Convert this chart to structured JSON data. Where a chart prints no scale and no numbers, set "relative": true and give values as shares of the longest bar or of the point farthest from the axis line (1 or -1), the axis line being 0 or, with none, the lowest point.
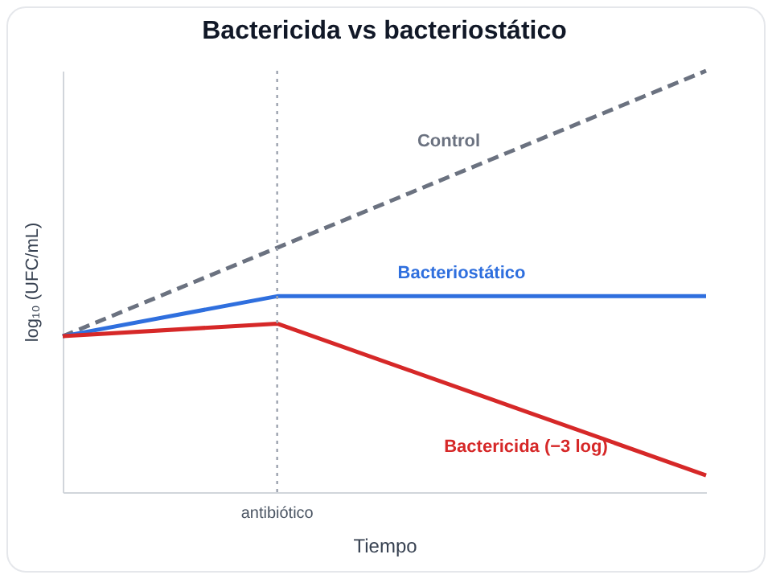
{
  "chart_data": {
    "type": "line",
    "title": "Bactericida vs bacteriostático",
    "xlabel": "Tiempo",
    "ylabel": "log₁₀ (UFC/mL)",
    "relative": true,
    "grid": false,
    "legend": false,
    "categories": [
      null,
      null,
      null,
      null
    ],
    "series": [
      {
        "name": "Control",
        "color": "#6b7280",
        "line_style": "dashed",
        "values": [
          0.37,
          0.58,
          0.79,
          1
        ]
      },
      {
        "name": "Bacteriostático",
        "color": "#2f6fde",
        "line_style": "solid",
        "values": [
          0.37,
          0.465,
          0.465,
          0.465
        ]
      },
      {
        "name": "Bactericida (−3 log)",
        "color": "#d62828",
        "line_style": "solid",
        "values": [
          0.37,
          0.4,
          0.22,
          0.04
        ]
      }
    ],
    "annotations": [
      "antibiótico"
    ]
  }
}
